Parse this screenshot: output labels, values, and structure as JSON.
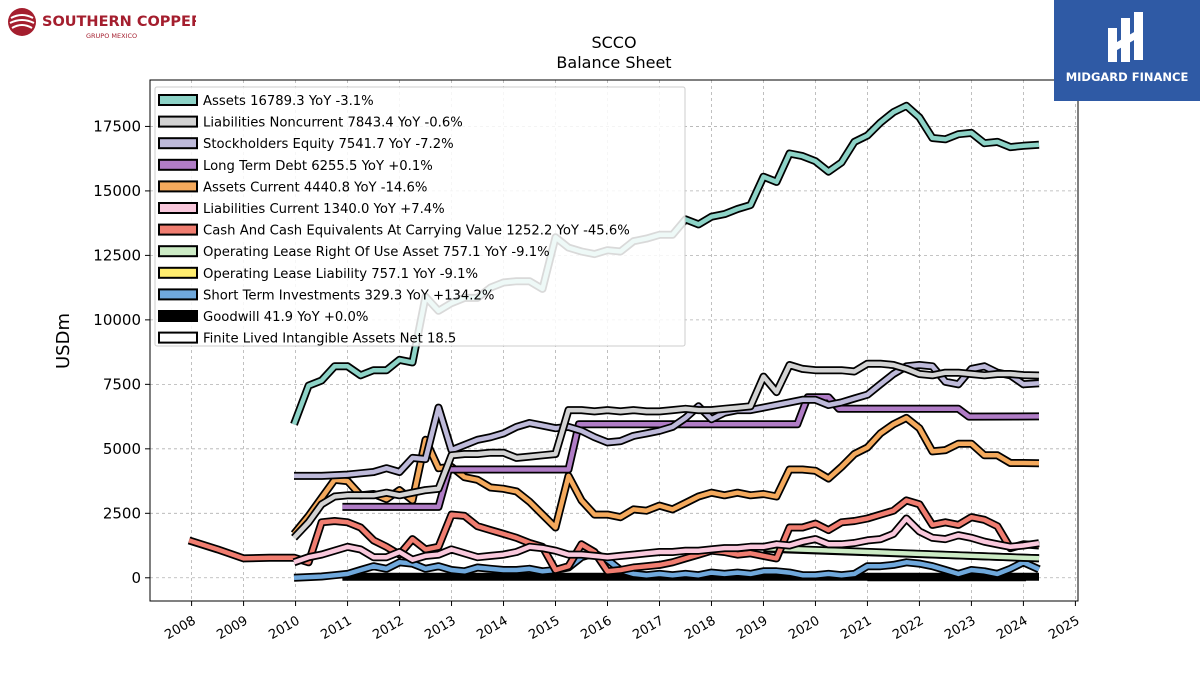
{
  "header": {
    "left_logo_text": "SOUTHERN COPPER",
    "left_logo_subtext": "GRUPO MEXICO",
    "right_logo_text": "MIDGARD FINANCE"
  },
  "colors": {
    "brand_red": "#a41e2e",
    "brand_blue": "#2f5aa5"
  },
  "chart_data": {
    "type": "line",
    "title": "SCCO",
    "subtitle": "Balance  Sheet",
    "ylabel": "USDm",
    "xlabel": "",
    "xlim": [
      2007.2,
      2025.05
    ],
    "ylim": [
      -900,
      19300
    ],
    "yticks": [
      0,
      2500,
      5000,
      7500,
      10000,
      12500,
      15000,
      17500
    ],
    "ytick_labels": [
      "0",
      "2500",
      "5000",
      "7500",
      "10000",
      "12500",
      "15000",
      "17500"
    ],
    "xticks": [
      2008,
      2009,
      2010,
      2011,
      2012,
      2013,
      2014,
      2015,
      2016,
      2017,
      2018,
      2019,
      2020,
      2021,
      2022,
      2023,
      2024,
      2025
    ],
    "xtick_labels": [
      "2008",
      "2009",
      "2010",
      "2011",
      "2012",
      "2013",
      "2014",
      "2015",
      "2016",
      "2017",
      "2018",
      "2019",
      "2020",
      "2021",
      "2022",
      "2023",
      "2024",
      "2025"
    ],
    "grid": true,
    "legend_position": "upper-left",
    "series": [
      {
        "name": "Assets",
        "legend": "Assets  16789.3 YoY -3.1%",
        "color": "#8dd3c7",
        "x": [
          2009.97,
          2010.25,
          2010.5,
          2010.75,
          2011.0,
          2011.25,
          2011.5,
          2011.75,
          2012.0,
          2012.25,
          2012.5,
          2012.75,
          2013.0,
          2013.25,
          2013.5,
          2013.75,
          2014.0,
          2014.25,
          2014.5,
          2014.75,
          2015.0,
          2015.25,
          2015.5,
          2015.75,
          2016.0,
          2016.25,
          2016.5,
          2016.75,
          2017.0,
          2017.25,
          2017.5,
          2017.75,
          2018.0,
          2018.25,
          2018.5,
          2018.75,
          2019.0,
          2019.25,
          2019.5,
          2019.75,
          2020.0,
          2020.25,
          2020.5,
          2020.75,
          2021.0,
          2021.25,
          2021.5,
          2021.75,
          2022.0,
          2022.25,
          2022.5,
          2022.75,
          2023.0,
          2023.25,
          2023.5,
          2023.75,
          2024.0,
          2024.3
        ],
        "values": [
          5950,
          7450,
          7650,
          8200,
          8200,
          7850,
          8050,
          8050,
          8450,
          8350,
          10900,
          10350,
          10650,
          10850,
          10850,
          11250,
          11450,
          11500,
          11500,
          11200,
          13200,
          12800,
          12650,
          12550,
          12700,
          12650,
          13050,
          13150,
          13300,
          13300,
          13900,
          13700,
          14000,
          14100,
          14300,
          14450,
          15550,
          15350,
          16450,
          16350,
          16150,
          15750,
          16100,
          16900,
          17150,
          17650,
          18050,
          18300,
          17850,
          17050,
          17000,
          17200,
          17250,
          16850,
          16900,
          16700,
          16750,
          16789
        ]
      },
      {
        "name": "Liabilities Noncurrent",
        "legend": "Liabilities Noncurrent  7843.4 YoY -0.6%",
        "color": "#d3d3d3",
        "x": [
          2009.97,
          2010.25,
          2010.5,
          2010.75,
          2011.0,
          2011.25,
          2011.5,
          2011.75,
          2012.0,
          2012.25,
          2012.5,
          2012.75,
          2013.0,
          2013.25,
          2013.5,
          2013.75,
          2014.0,
          2014.25,
          2014.5,
          2014.75,
          2015.0,
          2015.25,
          2015.5,
          2015.75,
          2016.0,
          2016.25,
          2016.5,
          2016.75,
          2017.0,
          2017.25,
          2017.5,
          2017.75,
          2018.0,
          2018.25,
          2018.5,
          2018.75,
          2019.0,
          2019.25,
          2019.5,
          2019.75,
          2020.0,
          2020.25,
          2020.5,
          2020.75,
          2021.0,
          2021.25,
          2021.5,
          2021.75,
          2022.0,
          2022.25,
          2022.5,
          2022.75,
          2023.0,
          2023.25,
          2023.5,
          2023.75,
          2024.0,
          2024.3
        ],
        "values": [
          1550,
          2150,
          2850,
          3150,
          3200,
          3200,
          3200,
          3300,
          3200,
          3300,
          3400,
          3450,
          4750,
          4800,
          4800,
          4850,
          4850,
          4650,
          4700,
          4750,
          4800,
          6500,
          6500,
          6450,
          6500,
          6450,
          6500,
          6450,
          6450,
          6500,
          6550,
          6500,
          6500,
          6550,
          6600,
          6650,
          7800,
          7200,
          8250,
          8100,
          8050,
          8050,
          8050,
          8000,
          8300,
          8300,
          8250,
          8100,
          7900,
          7850,
          7950,
          7950,
          7900,
          7850,
          7900,
          7900,
          7860,
          7843
        ]
      },
      {
        "name": "Stockholders Equity",
        "legend": "Stockholders Equity  7541.7 YoY -7.2%",
        "color": "#bebada",
        "x": [
          2009.97,
          2010.5,
          2011.0,
          2011.25,
          2011.5,
          2011.75,
          2012.0,
          2012.25,
          2012.5,
          2012.75,
          2013.0,
          2013.25,
          2013.5,
          2013.75,
          2014.0,
          2014.25,
          2014.5,
          2014.75,
          2015.0,
          2015.25,
          2015.5,
          2015.75,
          2016.0,
          2016.25,
          2016.5,
          2016.75,
          2017.0,
          2017.25,
          2017.5,
          2017.75,
          2018.0,
          2018.25,
          2018.5,
          2018.75,
          2019.0,
          2019.25,
          2019.5,
          2019.75,
          2020.0,
          2020.25,
          2020.5,
          2020.75,
          2021.0,
          2021.25,
          2021.5,
          2021.75,
          2022.0,
          2022.25,
          2022.5,
          2022.75,
          2023.0,
          2023.25,
          2023.5,
          2023.75,
          2024.0,
          2024.3
        ],
        "values": [
          3950,
          3950,
          4000,
          4050,
          4100,
          4250,
          4100,
          4650,
          4600,
          6600,
          4950,
          5150,
          5350,
          5450,
          5600,
          5850,
          6000,
          5900,
          5800,
          5850,
          5700,
          5450,
          5250,
          5300,
          5500,
          5600,
          5700,
          5850,
          6200,
          6650,
          6150,
          6400,
          6500,
          6500,
          6600,
          6700,
          6800,
          6900,
          6900,
          6700,
          6800,
          6950,
          7100,
          7500,
          7900,
          8200,
          8250,
          8200,
          7600,
          7500,
          8100,
          8200,
          7950,
          7850,
          7500,
          7542
        ]
      },
      {
        "name": "Long Term Debt",
        "legend": "Long Term Debt  6255.5 YoY +0.1%",
        "color": "#b07cc6",
        "x": [
          2010.9,
          2012.75,
          2012.95,
          2015.25,
          2015.45,
          2019.65,
          2019.85,
          2020.25,
          2020.45,
          2022.75,
          2022.95,
          2024.3
        ],
        "values": [
          2750,
          2750,
          4200,
          4200,
          5950,
          5950,
          7000,
          7000,
          6550,
          6550,
          6250,
          6256
        ]
      },
      {
        "name": "Assets Current",
        "legend": "Assets Current  4440.8 YoY -14.6%",
        "color": "#f4a95c",
        "x": [
          2009.97,
          2010.25,
          2010.5,
          2010.75,
          2011.0,
          2011.25,
          2011.5,
          2011.75,
          2012.0,
          2012.25,
          2012.5,
          2012.75,
          2013.0,
          2013.25,
          2013.5,
          2013.75,
          2014.0,
          2014.25,
          2014.5,
          2014.75,
          2015.0,
          2015.25,
          2015.5,
          2015.75,
          2016.0,
          2016.25,
          2016.5,
          2016.75,
          2017.0,
          2017.25,
          2017.5,
          2017.75,
          2018.0,
          2018.25,
          2018.5,
          2018.75,
          2019.0,
          2019.25,
          2019.5,
          2019.75,
          2020.0,
          2020.25,
          2020.5,
          2020.75,
          2021.0,
          2021.25,
          2021.5,
          2021.75,
          2022.0,
          2022.25,
          2022.5,
          2022.75,
          2023.0,
          2023.25,
          2023.5,
          2023.75,
          2024.0,
          2024.3
        ],
        "values": [
          1700,
          2400,
          3100,
          3800,
          3750,
          3200,
          3250,
          3050,
          3400,
          3000,
          5350,
          4250,
          4300,
          3900,
          3800,
          3500,
          3450,
          3350,
          2950,
          2450,
          1950,
          3950,
          3000,
          2450,
          2450,
          2350,
          2650,
          2600,
          2800,
          2650,
          2900,
          3150,
          3300,
          3200,
          3300,
          3200,
          3250,
          3150,
          4200,
          4200,
          4150,
          3850,
          4300,
          4800,
          5050,
          5600,
          5950,
          6200,
          5800,
          4900,
          4950,
          5200,
          5200,
          4750,
          4750,
          4450,
          4450,
          4441
        ]
      },
      {
        "name": "Liabilities Current",
        "legend": "Liabilities Current  1340.0 YoY +7.4%",
        "color": "#f9c8dc",
        "x": [
          2009.97,
          2010.25,
          2010.5,
          2010.75,
          2011.0,
          2011.25,
          2011.5,
          2011.75,
          2012.0,
          2012.25,
          2012.5,
          2012.75,
          2013.0,
          2013.25,
          2013.5,
          2013.75,
          2014.0,
          2014.25,
          2014.5,
          2014.75,
          2015.0,
          2015.25,
          2015.5,
          2015.75,
          2016.0,
          2016.25,
          2016.5,
          2016.75,
          2017.0,
          2017.25,
          2017.5,
          2017.75,
          2018.0,
          2018.25,
          2018.5,
          2018.75,
          2019.0,
          2019.25,
          2019.5,
          2019.75,
          2020.0,
          2020.25,
          2020.5,
          2020.75,
          2021.0,
          2021.25,
          2021.5,
          2021.75,
          2022.0,
          2022.25,
          2022.5,
          2022.75,
          2023.0,
          2023.25,
          2023.5,
          2023.75,
          2024.0,
          2024.3
        ],
        "values": [
          600,
          800,
          900,
          1050,
          1200,
          1100,
          800,
          800,
          1000,
          700,
          850,
          900,
          1100,
          950,
          800,
          850,
          900,
          1000,
          1200,
          1150,
          1050,
          900,
          900,
          850,
          800,
          850,
          900,
          950,
          1000,
          1000,
          1050,
          1050,
          1100,
          1150,
          1150,
          1200,
          1200,
          1300,
          1250,
          1400,
          1500,
          1300,
          1300,
          1350,
          1450,
          1500,
          1700,
          2300,
          1800,
          1550,
          1500,
          1650,
          1550,
          1400,
          1300,
          1200,
          1250,
          1340
        ]
      },
      {
        "name": "Cash And Cash Equivalents At Carrying Value",
        "legend": "Cash And Cash Equivalents At Carrying Value  1252.2 YoY -45.6%",
        "color": "#f07d70",
        "x": [
          2007.95,
          2008.5,
          2009.0,
          2009.5,
          2009.97,
          2010.25,
          2010.5,
          2010.75,
          2011.0,
          2011.25,
          2011.5,
          2011.75,
          2012.0,
          2012.25,
          2012.5,
          2012.75,
          2013.0,
          2013.25,
          2013.5,
          2013.75,
          2014.0,
          2014.25,
          2014.5,
          2014.75,
          2015.0,
          2015.25,
          2015.5,
          2015.75,
          2016.0,
          2016.25,
          2016.5,
          2016.75,
          2017.0,
          2017.25,
          2017.5,
          2017.75,
          2018.0,
          2018.25,
          2018.5,
          2018.75,
          2019.0,
          2019.25,
          2019.5,
          2019.75,
          2020.0,
          2020.25,
          2020.5,
          2020.75,
          2021.0,
          2021.25,
          2021.5,
          2021.75,
          2022.0,
          2022.25,
          2022.5,
          2022.75,
          2023.0,
          2023.25,
          2023.5,
          2023.75,
          2024.0,
          2024.3
        ],
        "values": [
          1450,
          1100,
          750,
          780,
          780,
          600,
          2150,
          2200,
          2150,
          1950,
          1450,
          1200,
          900,
          1500,
          1100,
          1200,
          2450,
          2400,
          2000,
          1850,
          1700,
          1550,
          1350,
          1200,
          300,
          450,
          1300,
          1000,
          250,
          300,
          400,
          450,
          500,
          600,
          750,
          900,
          1050,
          1000,
          900,
          950,
          850,
          750,
          1950,
          1950,
          2100,
          1850,
          2150,
          2200,
          2300,
          2450,
          2600,
          3000,
          2850,
          2050,
          2150,
          2050,
          2350,
          2250,
          2000,
          1150,
          1300,
          1252
        ]
      },
      {
        "name": "Operating Lease Right Of Use Asset",
        "legend": "Operating Lease Right Of Use Asset  757.1 YoY -9.1%",
        "color": "#ccebc5",
        "x": [
          2019.0,
          2024.3
        ],
        "values": [
          1150,
          757
        ]
      },
      {
        "name": "Operating Lease Liability",
        "legend": "Operating Lease Liability  757.1 YoY -9.1%",
        "color": "#ffed6f",
        "x": [
          2019.0,
          2024.3
        ],
        "values": [
          1130,
          757
        ]
      },
      {
        "name": "Short Term Investments",
        "legend": "Short Term Investments  329.3 YoY +134.2%",
        "color": "#6fa8dc",
        "x": [
          2009.97,
          2010.5,
          2010.75,
          2011.0,
          2011.25,
          2011.5,
          2011.75,
          2012.0,
          2012.25,
          2012.5,
          2012.75,
          2013.0,
          2013.25,
          2013.5,
          2013.75,
          2014.0,
          2014.25,
          2014.5,
          2014.75,
          2015.0,
          2015.25,
          2015.5,
          2015.75,
          2016.0,
          2016.25,
          2016.5,
          2016.75,
          2017.0,
          2017.25,
          2017.5,
          2017.75,
          2018.0,
          2018.25,
          2018.5,
          2018.75,
          2019.0,
          2019.25,
          2019.5,
          2019.75,
          2020.0,
          2020.25,
          2020.5,
          2020.75,
          2021.0,
          2021.25,
          2021.5,
          2021.75,
          2022.0,
          2022.25,
          2022.5,
          2022.75,
          2023.0,
          2023.25,
          2023.5,
          2023.75,
          2024.0,
          2024.3
        ],
        "values": [
          0,
          50,
          100,
          150,
          300,
          450,
          350,
          600,
          550,
          350,
          450,
          300,
          250,
          400,
          350,
          300,
          300,
          350,
          250,
          300,
          400,
          800,
          950,
          700,
          300,
          150,
          100,
          150,
          100,
          150,
          100,
          200,
          150,
          200,
          150,
          250,
          250,
          200,
          100,
          100,
          150,
          100,
          150,
          450,
          450,
          500,
          600,
          550,
          450,
          300,
          150,
          300,
          250,
          150,
          350,
          600,
          329
        ]
      },
      {
        "name": "Goodwill",
        "legend": "Goodwill  41.9 YoY +0.0%",
        "color": "#000000",
        "x": [
          2010.9,
          2024.3
        ],
        "values": [
          41.9,
          41.9
        ]
      },
      {
        "name": "Finite Lived Intangible Assets Net",
        "legend": "Finite Lived Intangible Assets Net  18.5",
        "color": "#ffffff",
        "x": [
          2021.0,
          2024.05
        ],
        "values": [
          18.5,
          18.5
        ]
      }
    ]
  }
}
